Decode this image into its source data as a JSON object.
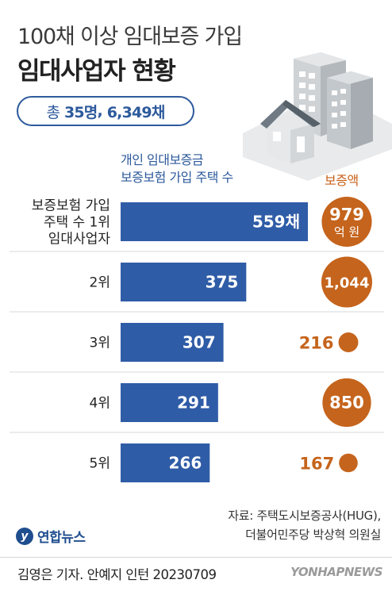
{
  "title_line1": "100채 이상 임대보증 가입",
  "title_line2": "임대사업자 현황",
  "summary": {
    "prefix": "총",
    "people": "35명",
    "sep": ",",
    "houses": "6,349채"
  },
  "column_header": [
    "개인 임대보증금",
    "보증보험 가입 주택 수"
  ],
  "amount_header": "보증액",
  "chart_data": {
    "type": "bar",
    "orientation": "horizontal",
    "categories": [
      [
        "보증보험 가입",
        "주택 수 1위",
        "임대사업자"
      ],
      [
        "2위"
      ],
      [
        "3위"
      ],
      [
        "4위"
      ],
      [
        "5위"
      ]
    ],
    "values": [
      559,
      375,
      307,
      291,
      266
    ],
    "value_labels": [
      "559채",
      "375",
      "307",
      "291",
      "266"
    ],
    "secondary_series": {
      "values": [
        979,
        1044,
        216,
        850,
        167
      ],
      "labels": [
        [
          "979",
          "억 원"
        ],
        [
          "1,044"
        ],
        [
          "216"
        ],
        [
          "850"
        ],
        [
          "167"
        ]
      ],
      "label_inside_circle": [
        true,
        true,
        false,
        true,
        false
      ]
    },
    "colors": {
      "bar": "#2f5ca6",
      "circle": "#c5641c",
      "circle_text_outside": "#c5641c"
    },
    "grid": false
  },
  "source_lines": [
    "자료: 주택도시보증공사(HUG),",
    "더불어민주당 박상혁 의원실"
  ],
  "logo_text": "연합뉴스",
  "credit": "김영은 기자. 안예지 인턴  20230709",
  "watermark": "YONHAPNEWS"
}
